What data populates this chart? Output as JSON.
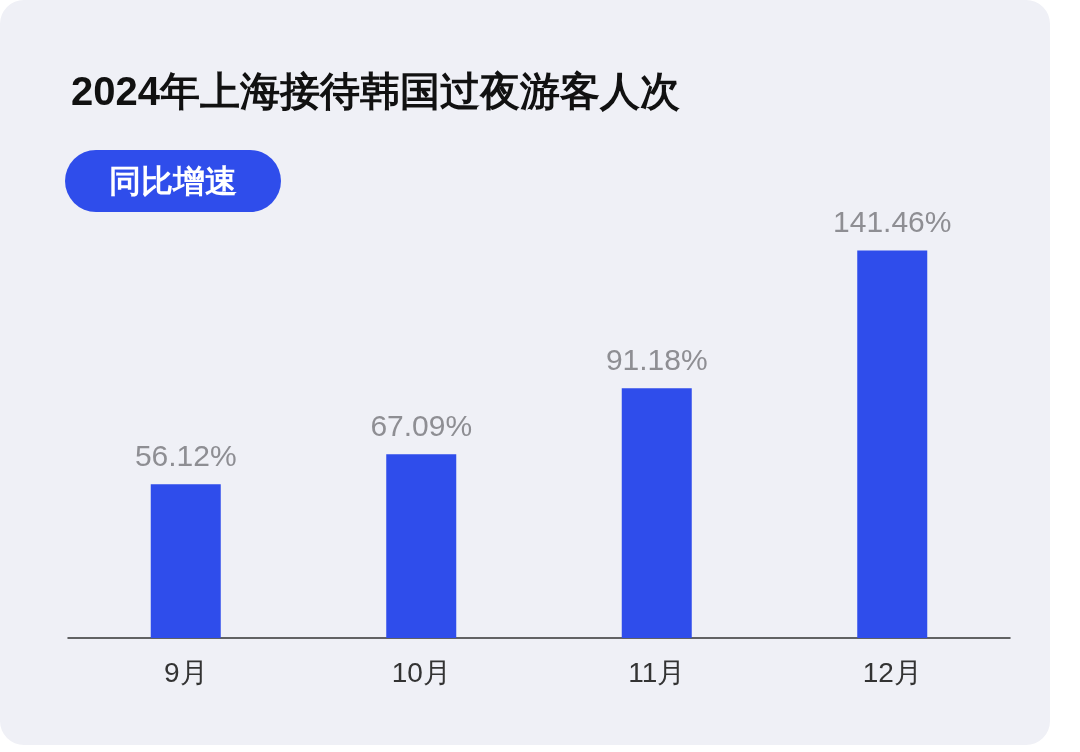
{
  "chart_data": {
    "type": "bar",
    "title": "2024年上海接待韩国过夜游客人次",
    "subtitle": "同比增速",
    "categories": [
      "9月",
      "10月",
      "11月",
      "12月"
    ],
    "values": [
      56.12,
      67.09,
      91.18,
      141.46
    ],
    "value_labels": [
      "56.12%",
      "67.09%",
      "91.18%",
      "141.46%"
    ],
    "color": "#2f4deb"
  }
}
